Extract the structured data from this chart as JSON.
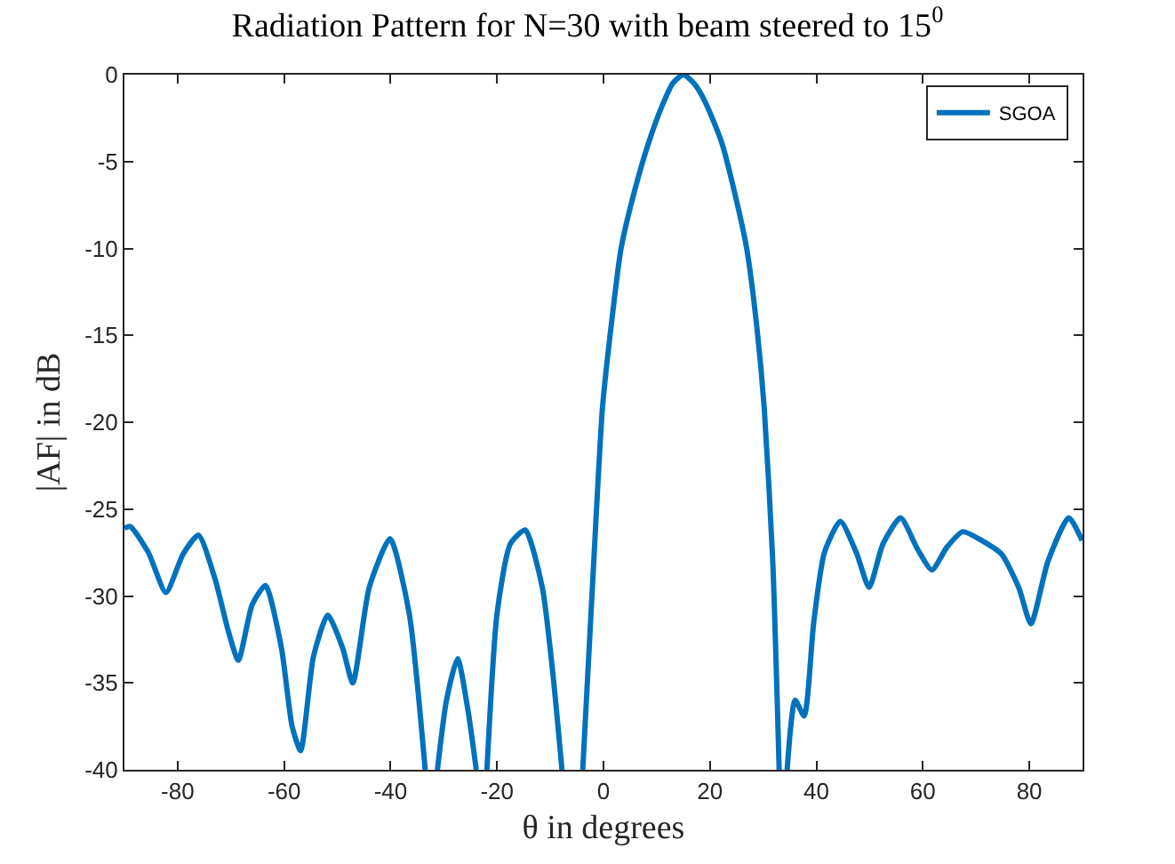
{
  "chart_data": {
    "type": "line",
    "title": "Radiation Pattern for N=30 with beam steered to 15$^{0}$",
    "xlabel": "θ in degrees",
    "ylabel": "|AF| in dB",
    "x": [
      -90,
      -88.9,
      -85.5,
      -82.2,
      -79,
      -76.1,
      -73,
      -70.5,
      -68.6,
      -66,
      -63.5,
      -60.5,
      -58.5,
      -56.9,
      -54.5,
      -51.8,
      -49,
      -47.1,
      -44,
      -40.1,
      -36.5,
      -33.5,
      -32.3,
      -31.2,
      -29.5,
      -27.4,
      -25.5,
      -23.9,
      -22.9,
      -21.9,
      -20,
      -17.5,
      -14.7,
      -11.5,
      -9.5,
      -7.8,
      -5.8,
      -3.9,
      -2,
      -0.2,
      1.5,
      3.3,
      6,
      8.5,
      11,
      13,
      15,
      17,
      19,
      22.2,
      24.8,
      26.9,
      28.8,
      30.2,
      31.8,
      33.0,
      33.7,
      34.5,
      36.0,
      37.7,
      39.5,
      41.5,
      44.5,
      47.5,
      49.9,
      52.5,
      55.8,
      59,
      61.7,
      64.5,
      67.5,
      71,
      74.8,
      78,
      80.3,
      83.5,
      87.4,
      89.9
    ],
    "series": [
      {
        "name": "SGOA",
        "color": "#0072bd",
        "values": [
          -26.1,
          -26.0,
          -27.5,
          -29.8,
          -27.6,
          -26.5,
          -29.0,
          -32.0,
          -33.7,
          -30.5,
          -29.4,
          -33.0,
          -37.5,
          -38.9,
          -33.5,
          -31.1,
          -33.0,
          -35.0,
          -29.5,
          -26.7,
          -31.0,
          -40,
          null,
          -40,
          -36.0,
          -33.6,
          -36.5,
          -40,
          null,
          -40,
          -31.0,
          -27.0,
          -26.2,
          -29.5,
          -34.5,
          -40,
          null,
          -40,
          -29.0,
          -19.2,
          -14.3,
          -10.0,
          -6.5,
          -3.9,
          -1.8,
          -0.5,
          0,
          -0.5,
          -1.5,
          -3.9,
          -7.0,
          -10.0,
          -14.5,
          -19.2,
          -28.0,
          -40,
          null,
          -40,
          -36.0,
          -36.9,
          -31.5,
          -27.5,
          -25.7,
          -27.5,
          -29.5,
          -27.0,
          -25.5,
          -27.3,
          -28.5,
          -27.2,
          -26.3,
          -26.8,
          -27.6,
          -29.5,
          -31.6,
          -28.0,
          -25.5,
          -26.8
        ]
      }
    ],
    "xlim": [
      -90,
      90
    ],
    "ylim": [
      -40,
      0
    ],
    "xticks": [
      -80,
      -60,
      -40,
      -20,
      0,
      20,
      40,
      60,
      80
    ],
    "yticks": [
      -40,
      -35,
      -30,
      -25,
      -20,
      -15,
      -10,
      -5,
      0
    ],
    "legend": "top right",
    "grid": false,
    "marker": "none",
    "line_style": "solid"
  }
}
